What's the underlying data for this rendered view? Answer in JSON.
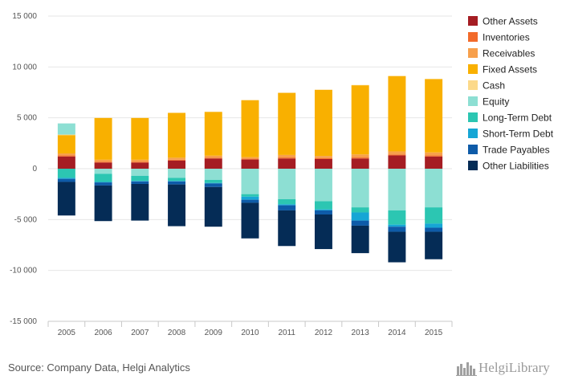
{
  "source": "Source: Company Data, Helgi Analytics",
  "logo_text": "HelgiLibrary",
  "chart_data": {
    "type": "bar",
    "stacked": true,
    "title": "",
    "xlabel": "",
    "ylabel": "",
    "ylim": [
      -15000,
      15000
    ],
    "yticks": [
      15000,
      10000,
      5000,
      0,
      -5000,
      -10000,
      -15000
    ],
    "ytick_labels": [
      "15 000",
      "10 000",
      "5 000",
      "0",
      "-5 000",
      "-10 000",
      "-15 000"
    ],
    "grid": true,
    "legend_position": "right",
    "categories": [
      "2005",
      "2006",
      "2007",
      "2008",
      "2009",
      "2010",
      "2011",
      "2012",
      "2013",
      "2014",
      "2015"
    ],
    "series": [
      {
        "name": "Other Assets",
        "color": "#a51d23",
        "values": [
          1200,
          600,
          600,
          800,
          1000,
          900,
          1000,
          950,
          1000,
          1300,
          1200
        ]
      },
      {
        "name": "Inventories",
        "color": "#f26a2a",
        "values": [
          100,
          80,
          80,
          80,
          80,
          80,
          100,
          100,
          100,
          100,
          100
        ]
      },
      {
        "name": "Receivables",
        "color": "#f7a04c",
        "values": [
          200,
          200,
          200,
          200,
          200,
          150,
          250,
          200,
          300,
          300,
          300
        ]
      },
      {
        "name": "Fixed Assets",
        "color": "#f9b000",
        "values": [
          1800,
          4100,
          4100,
          4400,
          4300,
          5600,
          6100,
          6500,
          6800,
          7400,
          7200
        ]
      },
      {
        "name": "Cash",
        "color": "#fcd98a",
        "values": [
          50,
          30,
          30,
          30,
          30,
          30,
          30,
          30,
          30,
          30,
          30
        ]
      },
      {
        "name": "Equity",
        "color": "#8ddfd3",
        "values": [
          1100,
          -500,
          -700,
          -900,
          -1100,
          -2500,
          -3000,
          -3200,
          -3800,
          -4100,
          -3800
        ]
      },
      {
        "name": "Long-Term Debt",
        "color": "#2cc6b2",
        "values": [
          -900,
          -800,
          -500,
          -300,
          -300,
          -250,
          -500,
          -800,
          -500,
          -1400,
          -1600
        ]
      },
      {
        "name": "Short-Term Debt",
        "color": "#16a6d5",
        "values": [
          -100,
          -50,
          -50,
          -50,
          -50,
          -300,
          -100,
          -100,
          -800,
          -200,
          -400
        ]
      },
      {
        "name": "Trade Payables",
        "color": "#0e5ba8",
        "values": [
          -300,
          -300,
          -250,
          -300,
          -350,
          -300,
          -500,
          -400,
          -500,
          -500,
          -400
        ]
      },
      {
        "name": "Other Liabilities",
        "color": "#052c56",
        "values": [
          -3300,
          -3500,
          -3600,
          -4100,
          -3900,
          -3500,
          -3500,
          -3400,
          -2700,
          -3000,
          -2700
        ]
      }
    ],
    "legend_order": [
      "Other Assets",
      "Inventories",
      "Receivables",
      "Fixed Assets",
      "Cash",
      "Equity",
      "Long-Term Debt",
      "Short-Term Debt",
      "Trade Payables",
      "Other Liabilities"
    ]
  }
}
